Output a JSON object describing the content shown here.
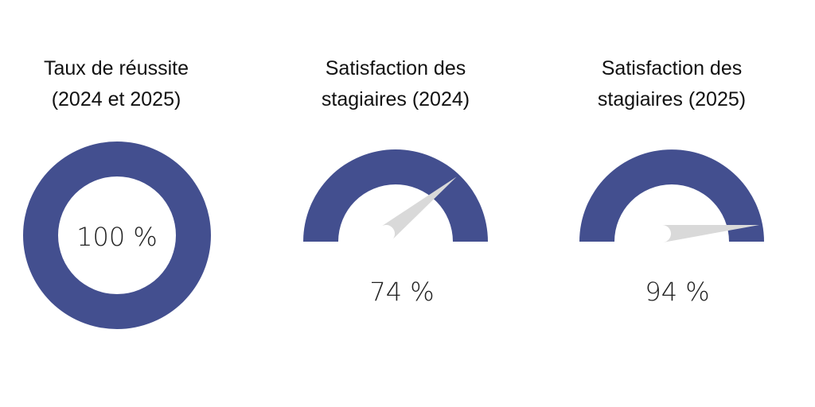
{
  "chart_data": [
    {
      "type": "donut",
      "title_lines": [
        "Taux de réussite",
        "(2024 et 2025)"
      ],
      "value": 100,
      "value_label": "100 %",
      "range": [
        0,
        100
      ],
      "color": "#434f8f"
    },
    {
      "type": "gauge",
      "title_lines": [
        "Satisfaction des",
        "stagiaires (2024)"
      ],
      "value": 74,
      "value_label": "74 %",
      "range": [
        0,
        100
      ],
      "color": "#434f8f",
      "needle_color": "#d9d9d9"
    },
    {
      "type": "gauge",
      "title_lines": [
        "Satisfaction des",
        "stagiaires (2025)"
      ],
      "value": 94,
      "value_label": "94 %",
      "range": [
        0,
        100
      ],
      "color": "#434f8f",
      "needle_color": "#d9d9d9"
    }
  ]
}
